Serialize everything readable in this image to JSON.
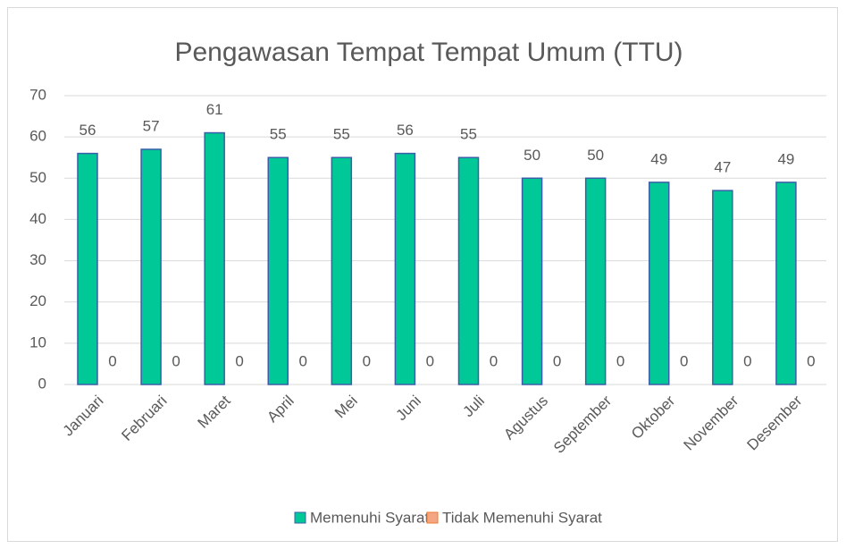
{
  "chart_data": {
    "type": "bar",
    "title": "Pengawasan Tempat Tempat Umum (TTU)",
    "categories": [
      "Januari",
      "Februari",
      "Maret",
      "April",
      "Mei",
      "Juni",
      "Juli",
      "Agustus",
      "September",
      "Oktober",
      "November",
      "Desember"
    ],
    "series": [
      {
        "name": "Memenuhi Syarat",
        "color": "#00c896",
        "values": [
          56,
          57,
          61,
          55,
          55,
          56,
          55,
          50,
          50,
          49,
          47,
          49
        ]
      },
      {
        "name": "Tidak Memenuhi Syarat",
        "color": "#f4a582",
        "values": [
          0,
          0,
          0,
          0,
          0,
          0,
          0,
          0,
          0,
          0,
          0,
          0
        ]
      }
    ],
    "ylim": [
      0,
      70
    ],
    "yticks": [
      0,
      10,
      20,
      30,
      40,
      50,
      60,
      70
    ],
    "grid": true,
    "legend": "bottom"
  }
}
